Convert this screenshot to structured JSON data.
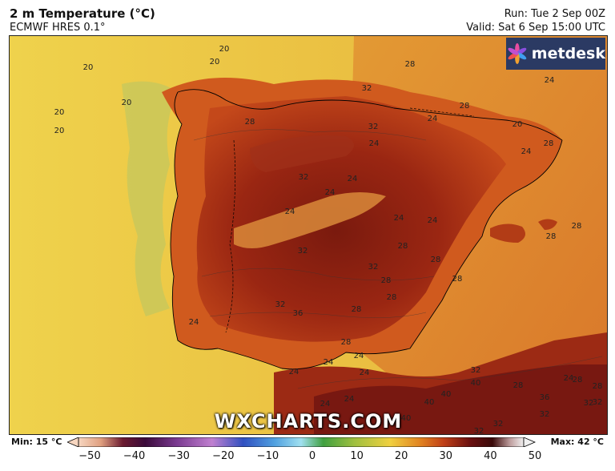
{
  "header": {
    "title": "2 m Temperature (°C)",
    "model": "ECMWF HRES 0.1°",
    "run": "Run: Tue 2 Sep 00Z",
    "valid": "Valid: Sat 6 Sep 15:00 UTC"
  },
  "logo": {
    "text": "metdesk"
  },
  "watermark": "WXCHARTS.COM",
  "scale": {
    "min_label": "Min: 15 °C",
    "max_label": "Max: 42 °C",
    "ticks": [
      "−50",
      "−40",
      "−30",
      "−20",
      "−10",
      "0",
      "10",
      "20",
      "30",
      "40",
      "50"
    ],
    "range": [
      -50,
      50
    ]
  },
  "map_labels": [
    {
      "text": "20"
    },
    {
      "text": "20"
    },
    {
      "text": "20"
    },
    {
      "text": "20"
    },
    {
      "text": "20"
    },
    {
      "text": "20"
    },
    {
      "text": "28"
    },
    {
      "text": "32"
    },
    {
      "text": "28"
    },
    {
      "text": "24"
    },
    {
      "text": "32"
    },
    {
      "text": "24"
    },
    {
      "text": "20"
    },
    {
      "text": "28"
    },
    {
      "text": "24"
    },
    {
      "text": "28"
    },
    {
      "text": "32"
    },
    {
      "text": "24"
    },
    {
      "text": "32"
    },
    {
      "text": "24"
    },
    {
      "text": "24"
    },
    {
      "text": "24"
    },
    {
      "text": "24"
    },
    {
      "text": "24"
    },
    {
      "text": "28"
    },
    {
      "text": "28"
    },
    {
      "text": "28"
    },
    {
      "text": "32"
    },
    {
      "text": "28"
    },
    {
      "text": "28"
    },
    {
      "text": "28"
    },
    {
      "text": "32"
    },
    {
      "text": "36"
    },
    {
      "text": "28"
    },
    {
      "text": "28"
    },
    {
      "text": "28"
    },
    {
      "text": "24"
    },
    {
      "text": "24"
    },
    {
      "text": "24"
    },
    {
      "text": "24"
    },
    {
      "text": "24"
    },
    {
      "text": "24"
    },
    {
      "text": "24"
    },
    {
      "text": "32"
    },
    {
      "text": "40"
    },
    {
      "text": "40"
    },
    {
      "text": "40"
    },
    {
      "text": "28"
    },
    {
      "text": "36"
    },
    {
      "text": "32"
    },
    {
      "text": "32"
    },
    {
      "text": "28"
    },
    {
      "text": "24"
    },
    {
      "text": "28"
    },
    {
      "text": "32"
    },
    {
      "text": "32"
    },
    {
      "text": "40"
    },
    {
      "text": "32"
    }
  ],
  "colors": {
    "sea": "#f0d04a",
    "hot": "#8c1d10",
    "warm": "#c84a1a",
    "mild": "#e88a2a"
  }
}
